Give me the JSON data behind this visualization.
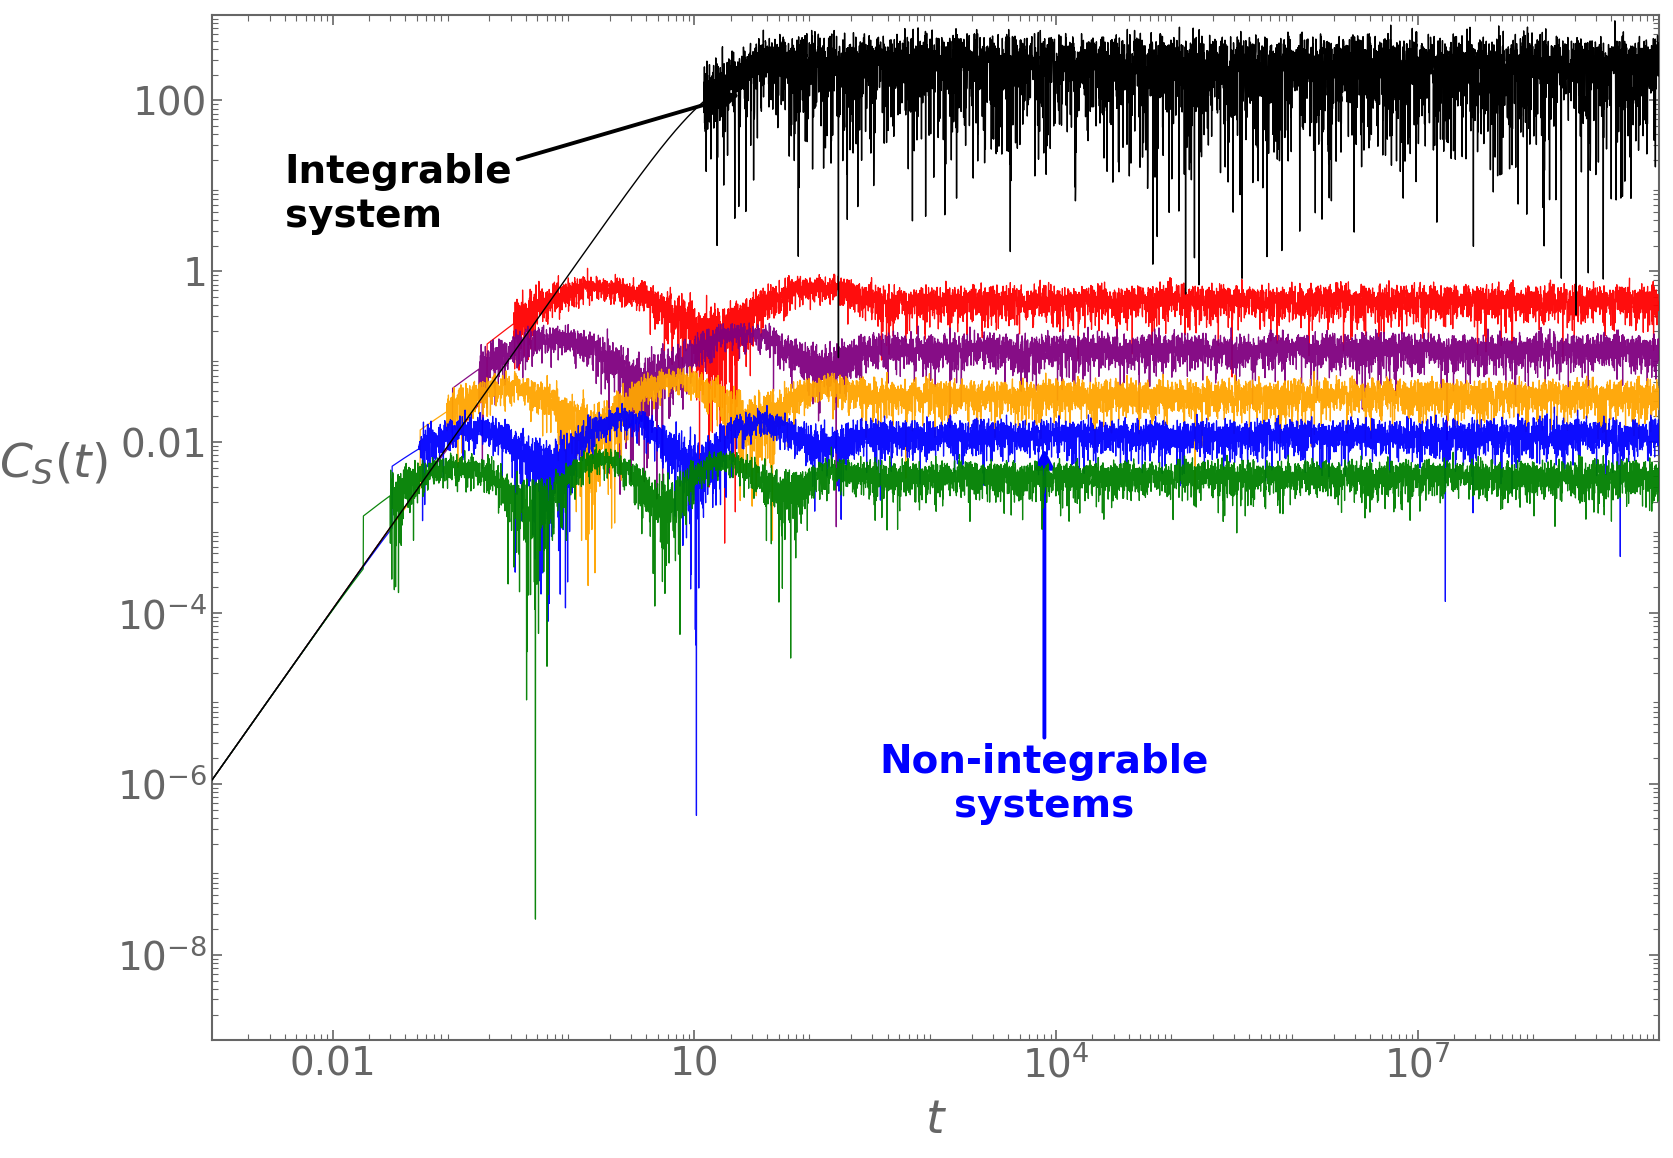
{
  "title": "",
  "xlabel": "t",
  "ylabel": "$C_S(t)$",
  "xlim_log": [
    -3,
    9
  ],
  "ylim_log": [
    -9,
    3
  ],
  "background_color": "#ffffff",
  "axis_color": "#666666",
  "tick_color": "#666666",
  "integrable_color": "#000000",
  "non_integrable_colors": [
    "#ff0000",
    "#800080",
    "#ffa500",
    "#0000ff",
    "#008000"
  ],
  "label_color_integrable": "#000000",
  "label_color_non_integrable": "#0000ff",
  "seed": 42,
  "n_points": 8000,
  "integrable_plateau": 250.0,
  "integrable_sat_t": 15.0,
  "plateaus": [
    0.45,
    0.12,
    0.035,
    0.012,
    0.004
  ],
  "xticks": [
    0.01,
    10,
    10000,
    10000000
  ],
  "xtick_labels": [
    "0.01",
    "10",
    "$10^4$",
    "$10^7$"
  ],
  "yticks": [
    100,
    1,
    0.01,
    0.0001,
    1e-06,
    1e-08
  ],
  "ytick_labels": [
    "100",
    "1",
    "0.01",
    "$10^{-4}$",
    "$10^{-6}$",
    "$10^{-8}$"
  ],
  "tick_fontsize": 28,
  "label_fontsize": 34,
  "annotation_fontsize": 28
}
